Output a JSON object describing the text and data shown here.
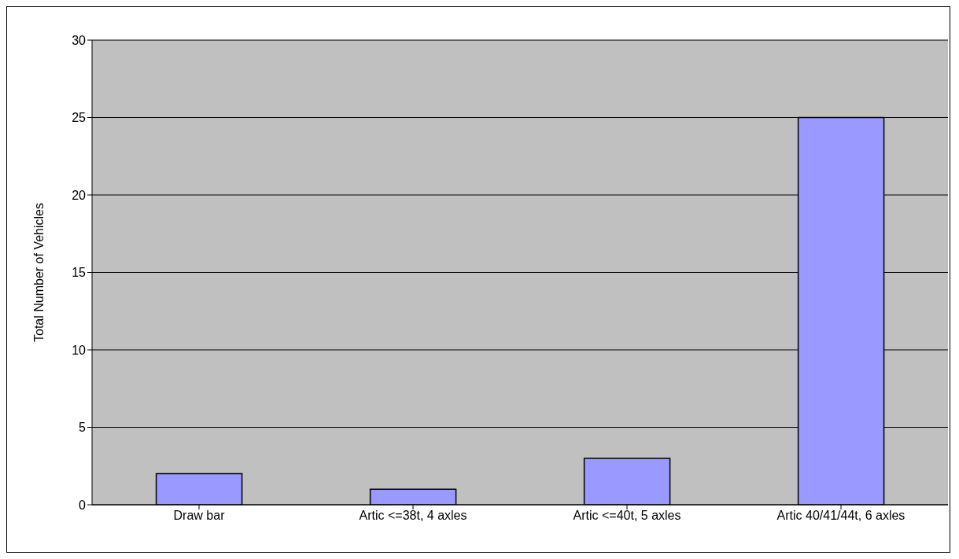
{
  "chart_data": {
    "type": "bar",
    "ylabel": "Total Number of Vehicles",
    "categories": [
      "Draw bar",
      "Artic <=38t, 4 axles",
      "Artic <=40t, 5 axles",
      "Artic 40/41/44t, 6 axles"
    ],
    "values": [
      2,
      1,
      3,
      25
    ],
    "color": "#9999ff",
    "ylim": [
      0,
      30
    ],
    "yticks": [
      0,
      5,
      10,
      15,
      20,
      25,
      30
    ],
    "grid": "y",
    "legend": false
  }
}
